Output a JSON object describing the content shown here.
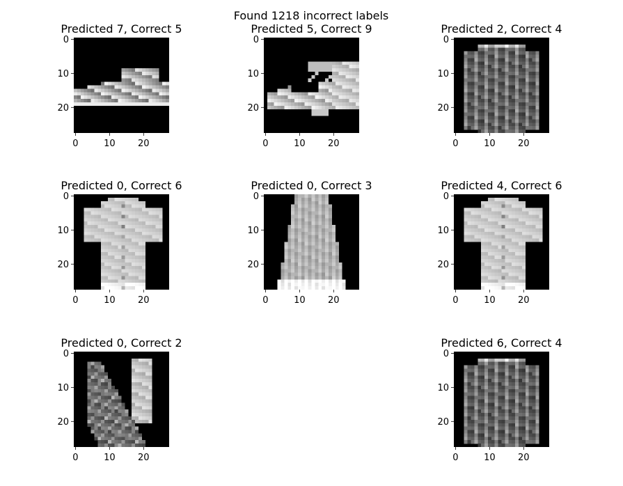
{
  "chart_data": {
    "type": "image-grid",
    "title": "Found 1218 incorrect labels",
    "image_size": [
      28,
      28
    ],
    "colormap": "gray",
    "xticks": [
      0,
      10,
      20
    ],
    "yticks": [
      0,
      10,
      20
    ],
    "xtick_labels": [
      "0",
      "10",
      "20"
    ],
    "ytick_labels": [
      "0",
      "10",
      "20"
    ],
    "grid": false,
    "panels": [
      {
        "title": "Predicted 7, Correct 5",
        "predicted": 7,
        "correct": 5,
        "depicts": "sneaker"
      },
      {
        "title": "Predicted 5, Correct 9",
        "predicted": 5,
        "correct": 9,
        "depicts": "ankle-boot"
      },
      {
        "title": "Predicted 2, Correct 4",
        "predicted": 2,
        "correct": 4,
        "depicts": "coat"
      },
      {
        "title": "Predicted 0, Correct 6",
        "predicted": 0,
        "correct": 6,
        "depicts": "shirt"
      },
      {
        "title": "Predicted 0, Correct 3",
        "predicted": 0,
        "correct": 3,
        "depicts": "dress"
      },
      {
        "title": "Predicted 4, Correct 6",
        "predicted": 4,
        "correct": 6,
        "depicts": "shirt"
      },
      {
        "title": "Predicted 0, Correct 2",
        "predicted": 0,
        "correct": 2,
        "depicts": "pullover"
      },
      null,
      {
        "title": "Predicted 6, Correct 4",
        "predicted": 6,
        "correct": 4,
        "depicts": "coat"
      }
    ]
  }
}
